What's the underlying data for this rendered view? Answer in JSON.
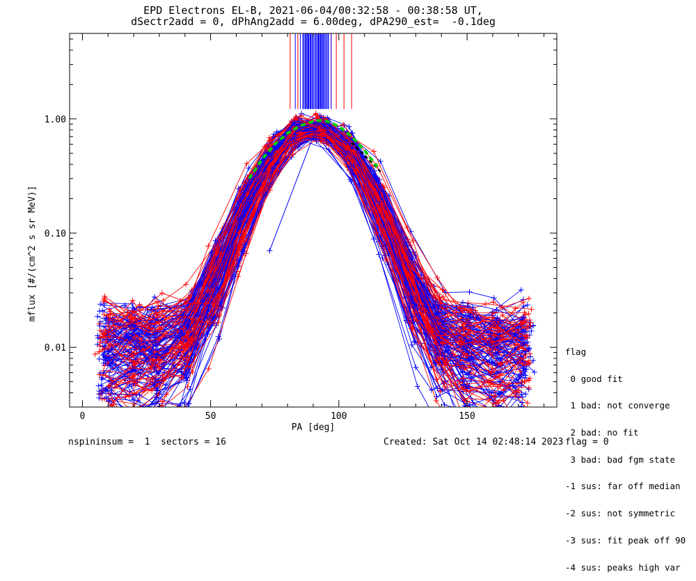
{
  "title_line1": "EPD Electrons EL-B, 2021-06-04/00:32:58 - 00:38:58 UT,",
  "title_line2": "dSectr2add = 0, dPhAng2add = 6.00deg, dPA290_est=  -0.1deg",
  "footer": {
    "left": "nspininsum =  1  sectors = 16",
    "created": "Created: Sat Oct 14 02:48:14 2023",
    "flag": "flag = 0"
  },
  "legend": {
    "title": "flag",
    "items": [
      " 0 good fit",
      " 1 bad: not converge",
      " 2 bad: no fit",
      " 3 bad: bad fgm state",
      "-1 sus: far off median",
      "-2 sus: not symmetric",
      "-3 sus: fit peak off 90",
      "-4 sus: peaks high var"
    ]
  },
  "colors": {
    "series_a": "#ff0000",
    "series_b": "#0000ff",
    "fit": "#00cc00",
    "fit_tail": "#000000",
    "axes": "#000000"
  },
  "chart_data": {
    "type": "line",
    "xlabel": "PA [deg]",
    "ylabel": "mflux [#/(cm^2 s sr MeV)]",
    "xlim": [
      -5,
      185
    ],
    "ylim": [
      0.003,
      5.6
    ],
    "yscale": "log",
    "xticks": [
      0,
      50,
      100,
      150
    ],
    "xtick_labels": [
      "0",
      "50",
      "100",
      "150"
    ],
    "yticks": [
      0.01,
      0.1,
      1.0
    ],
    "ytick_labels": [
      "0.01",
      "0.10",
      "1.00"
    ],
    "grid": false,
    "series": [
      {
        "color": "#ff0000",
        "spectra": 70
      },
      {
        "color": "#0000ff",
        "spectra": 90
      }
    ],
    "fit": {
      "x": [
        65,
        70,
        75,
        80,
        85,
        90,
        93,
        95,
        100,
        105,
        110,
        115
      ],
      "y": [
        0.3,
        0.44,
        0.6,
        0.75,
        0.87,
        0.95,
        0.97,
        0.96,
        0.86,
        0.7,
        0.53,
        0.38
      ]
    },
    "fit_tail": {
      "x": [
        105,
        110,
        115,
        117
      ],
      "y": [
        0.62,
        0.48,
        0.37,
        0.33
      ]
    },
    "peak_markers": [
      {
        "color": "#ff0000",
        "x": [
          81,
          84,
          87,
          89,
          92,
          97,
          99,
          102,
          105
        ]
      },
      {
        "color": "#0000ff",
        "x": [
          83,
          85,
          86,
          87,
          88,
          89,
          90,
          91,
          92,
          93,
          94,
          95,
          96,
          97
        ]
      }
    ],
    "outlier": {
      "x": [
        73,
        92
      ],
      "y": [
        0.07,
        0.92
      ]
    }
  }
}
